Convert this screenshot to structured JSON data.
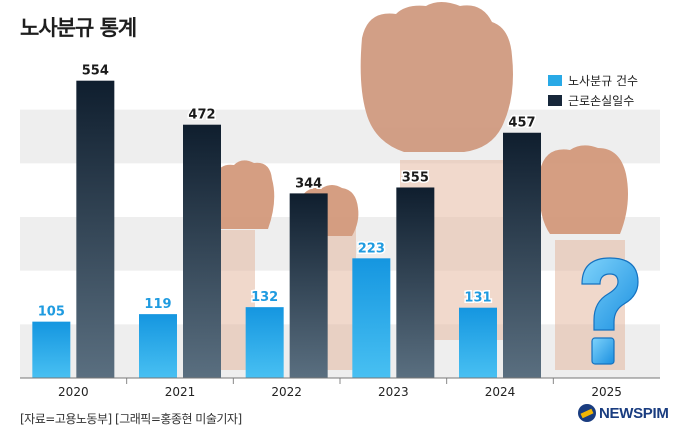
{
  "header": {
    "title": "노사분규 통계"
  },
  "chart_data": {
    "type": "bar",
    "categories": [
      "2020",
      "2021",
      "2022",
      "2023",
      "2024",
      "2025"
    ],
    "series": [
      {
        "name": "노사분규 건수",
        "values": [
          105,
          119,
          132,
          223,
          131,
          null
        ],
        "color": "#29a9e6"
      },
      {
        "name": "근로손실일수",
        "values": [
          554,
          472,
          344,
          355,
          457,
          null
        ],
        "color": "#17273a"
      }
    ],
    "ylim": [
      0,
      600
    ],
    "grid": "horizontal bands",
    "legend_position": "top-right",
    "annotations": [
      "question-mark-icon on 2025"
    ]
  },
  "footer": {
    "source": "[자료=고용노동부] [그래픽=홍종현 미술기자]",
    "logo": "NEWSPIM"
  }
}
